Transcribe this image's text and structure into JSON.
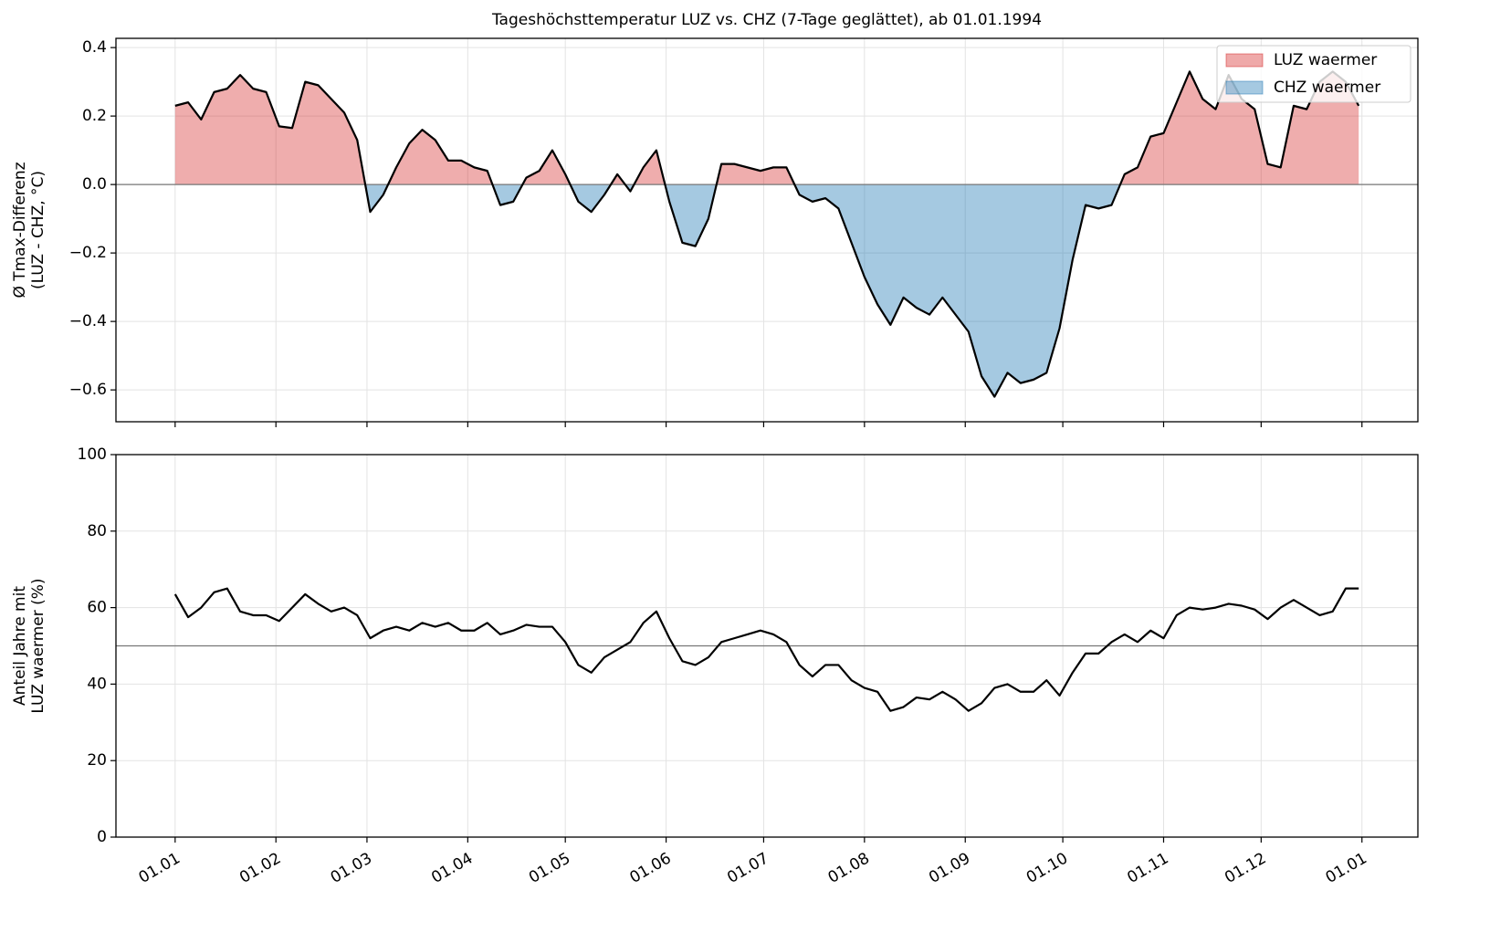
{
  "chart_data": [
    {
      "type": "area",
      "title": "Tageshöchsttemperatur LUZ vs. CHZ (7-Tage geglättet), ab 01.01.1994",
      "ylabel": [
        "Ø Tmax-Differenz",
        "(LUZ - CHZ, °C)"
      ],
      "x": [
        0,
        4,
        8,
        12,
        16,
        20,
        24,
        28,
        32,
        36,
        40,
        44,
        48,
        52,
        56,
        60,
        64,
        68,
        72,
        76,
        80,
        84,
        88,
        92,
        96,
        100,
        104,
        108,
        112,
        116,
        120,
        124,
        128,
        132,
        136,
        140,
        144,
        148,
        152,
        156,
        160,
        164,
        168,
        172,
        176,
        180,
        184,
        188,
        192,
        196,
        200,
        204,
        208,
        212,
        216,
        220,
        224,
        228,
        232,
        236,
        240,
        244,
        248,
        252,
        256,
        260,
        264,
        268,
        272,
        276,
        280,
        284,
        288,
        292,
        296,
        300,
        304,
        308,
        312,
        316,
        320,
        324,
        328,
        332,
        336,
        340,
        344,
        348,
        352,
        356,
        360,
        364
      ],
      "series": [
        {
          "color": "#000000",
          "values": [
            0.23,
            0.24,
            0.19,
            0.27,
            0.28,
            0.32,
            0.28,
            0.27,
            0.17,
            0.165,
            0.3,
            0.29,
            0.25,
            0.21,
            0.13,
            -0.08,
            -0.03,
            0.05,
            0.12,
            0.16,
            0.13,
            0.07,
            0.07,
            0.05,
            0.04,
            -0.06,
            -0.05,
            0.02,
            0.04,
            0.1,
            0.03,
            -0.05,
            -0.08,
            -0.03,
            0.03,
            -0.02,
            0.05,
            0.1,
            -0.05,
            -0.17,
            -0.18,
            -0.1,
            0.06,
            0.06,
            0.05,
            0.04,
            0.05,
            0.05,
            -0.03,
            -0.05,
            -0.04,
            -0.07,
            -0.17,
            -0.27,
            -0.35,
            -0.41,
            -0.33,
            -0.36,
            -0.38,
            -0.33,
            -0.38,
            -0.43,
            -0.56,
            -0.62,
            -0.55,
            -0.58,
            -0.57,
            -0.55,
            -0.42,
            -0.22,
            -0.06,
            -0.07,
            -0.06,
            0.03,
            0.05,
            0.14,
            0.15,
            0.24,
            0.33,
            0.25,
            0.22,
            0.32,
            0.25,
            0.22,
            0.06,
            0.05,
            0.23,
            0.22,
            0.3,
            0.33,
            0.3,
            0.23
          ]
        }
      ],
      "legend": {
        "corner": "upper right",
        "entries": [
          {
            "name": "LUZ waermer",
            "color": "#d62728"
          },
          {
            "name": "CHZ waermer",
            "color": "#1f77b4"
          }
        ]
      },
      "hline": 0,
      "sharex": true,
      "ylim": [
        -0.693,
        0.427
      ],
      "yticks": [
        {
          "value": -0.6,
          "label": "−0.6"
        },
        {
          "value": -0.4,
          "label": "−0.4"
        },
        {
          "value": -0.2,
          "label": "−0.2"
        },
        {
          "value": 0,
          "label": "0.0"
        },
        0.2,
        0.4
      ],
      "grid": true
    },
    {
      "type": "line",
      "ylabel": [
        "Anteil Jahre mit",
        "LUZ waermer (%)"
      ],
      "x": [
        0,
        4,
        8,
        12,
        16,
        20,
        24,
        28,
        32,
        36,
        40,
        44,
        48,
        52,
        56,
        60,
        64,
        68,
        72,
        76,
        80,
        84,
        88,
        92,
        96,
        100,
        104,
        108,
        112,
        116,
        120,
        124,
        128,
        132,
        136,
        140,
        144,
        148,
        152,
        156,
        160,
        164,
        168,
        172,
        176,
        180,
        184,
        188,
        192,
        196,
        200,
        204,
        208,
        212,
        216,
        220,
        224,
        228,
        232,
        236,
        240,
        244,
        248,
        252,
        256,
        260,
        264,
        268,
        272,
        276,
        280,
        284,
        288,
        292,
        296,
        300,
        304,
        308,
        312,
        316,
        320,
        324,
        328,
        332,
        336,
        340,
        344,
        348,
        352,
        356,
        360,
        364
      ],
      "series": [
        {
          "color": "#000000",
          "values": [
            63.5,
            57.5,
            60,
            64,
            65,
            59,
            58,
            58,
            56.5,
            60,
            63.5,
            61,
            59,
            60,
            58,
            52,
            54,
            55,
            54,
            56,
            55,
            56,
            54,
            54,
            56,
            53,
            54,
            55.5,
            55,
            55,
            51,
            45,
            43,
            47,
            49,
            51,
            56,
            59,
            52,
            46,
            45,
            47,
            51,
            52,
            53,
            54,
            53,
            51,
            45,
            42,
            45,
            45,
            41,
            39,
            38,
            33,
            34,
            36.5,
            36,
            38,
            36,
            33,
            35,
            39,
            40,
            38,
            38,
            41,
            37,
            43,
            48,
            48,
            51,
            53,
            51,
            54,
            52,
            58,
            60,
            59.5,
            60,
            61,
            60.5,
            59.5,
            57,
            60,
            62,
            60,
            58,
            59,
            65,
            65
          ]
        }
      ],
      "hline": 50,
      "xlim": [
        -18.2,
        382.2
      ],
      "xticks": [
        {
          "value": 0,
          "label": "01.01"
        },
        {
          "value": 31,
          "label": "01.02"
        },
        {
          "value": 59,
          "label": "01.03"
        },
        {
          "value": 90,
          "label": "01.04"
        },
        {
          "value": 120,
          "label": "01.05"
        },
        {
          "value": 151,
          "label": "01.06"
        },
        {
          "value": 181,
          "label": "01.07"
        },
        {
          "value": 212,
          "label": "01.08"
        },
        {
          "value": 243,
          "label": "01.09"
        },
        {
          "value": 273,
          "label": "01.10"
        },
        {
          "value": 304,
          "label": "01.11"
        },
        {
          "value": 334,
          "label": "01.12"
        },
        {
          "value": 365,
          "label": "01.01"
        }
      ],
      "ylim": [
        0,
        100
      ],
      "yticks": [
        0,
        20,
        40,
        60,
        80,
        100
      ],
      "grid": true
    }
  ]
}
